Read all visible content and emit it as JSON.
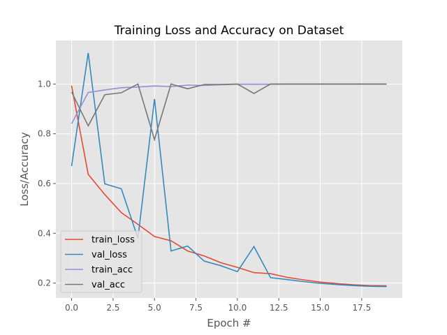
{
  "chart_data": {
    "type": "line",
    "title": "Training Loss and Accuracy on Dataset",
    "xlabel": "Epoch #",
    "ylabel": "Loss/Accuracy",
    "xlim": [
      -0.95,
      19.95
    ],
    "ylim": [
      0.14,
      1.175
    ],
    "x_ticks": [
      0.0,
      2.5,
      5.0,
      7.5,
      10.0,
      12.5,
      15.0,
      17.5
    ],
    "x_tick_labels": [
      "0.0",
      "2.5",
      "5.0",
      "7.5",
      "10.0",
      "12.5",
      "15.0",
      "17.5"
    ],
    "y_ticks": [
      0.2,
      0.4,
      0.6,
      0.8,
      1.0
    ],
    "y_tick_labels": [
      "0.2",
      "0.4",
      "0.6",
      "0.8",
      "1.0"
    ],
    "grid": true,
    "legend_position": "bottom-left",
    "x": [
      0,
      1,
      2,
      3,
      4,
      5,
      6,
      7,
      8,
      9,
      10,
      11,
      12,
      13,
      14,
      15,
      16,
      17,
      18,
      19
    ],
    "series": [
      {
        "name": "train_loss",
        "color": "#E24A33",
        "values": [
          0.993,
          0.637,
          0.556,
          0.483,
          0.436,
          0.387,
          0.37,
          0.329,
          0.309,
          0.282,
          0.263,
          0.242,
          0.238,
          0.223,
          0.213,
          0.204,
          0.198,
          0.193,
          0.19,
          0.189
        ]
      },
      {
        "name": "val_loss",
        "color": "#348ABD",
        "values": [
          0.67,
          1.125,
          0.599,
          0.579,
          0.38,
          0.94,
          0.329,
          0.349,
          0.288,
          0.27,
          0.246,
          0.347,
          0.222,
          0.214,
          0.206,
          0.199,
          0.194,
          0.19,
          0.187,
          0.186
        ]
      },
      {
        "name": "train_acc",
        "color": "#988ED5",
        "values": [
          0.841,
          0.966,
          0.976,
          0.985,
          0.988,
          0.992,
          0.99,
          0.996,
          0.994,
          0.997,
          0.999,
          0.999,
          0.999,
          1.0,
          1.0,
          1.0,
          1.0,
          1.0,
          1.0,
          1.0
        ]
      },
      {
        "name": "val_acc",
        "color": "#777777",
        "values": [
          0.968,
          0.832,
          0.957,
          0.965,
          1.0,
          0.777,
          1.0,
          0.981,
          0.998,
          0.998,
          1.0,
          0.962,
          1.0,
          1.0,
          1.0,
          1.0,
          1.0,
          1.0,
          1.0,
          1.0
        ]
      }
    ]
  }
}
